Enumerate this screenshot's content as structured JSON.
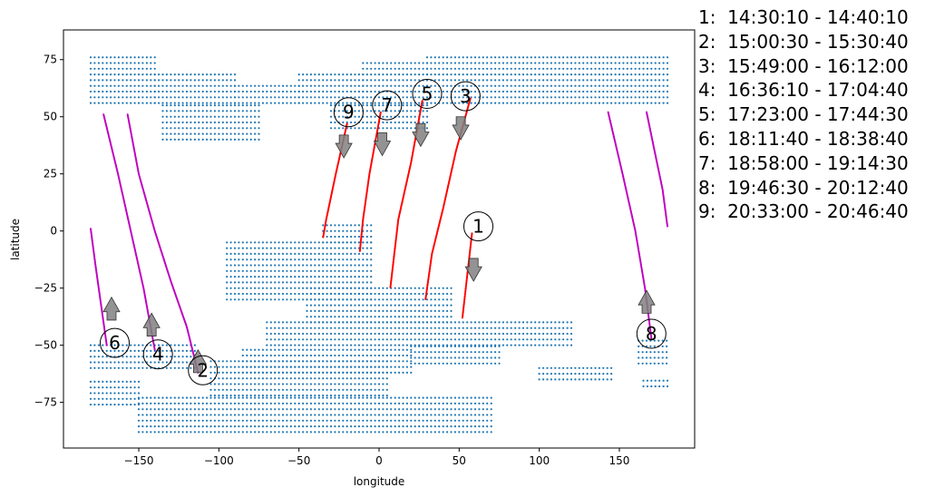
{
  "chart_data": {
    "type": "scatter",
    "xlabel": "longitude",
    "ylabel": "latitude",
    "xlim": [
      -197,
      197
    ],
    "ylim": [
      -95,
      88
    ],
    "xticks": [
      -150,
      -100,
      -50,
      0,
      50,
      100,
      150
    ],
    "yticks": [
      -75,
      -50,
      -25,
      0,
      25,
      50,
      75
    ],
    "colors": {
      "coverage": "#1f77b4",
      "ascending": "#bf00bf",
      "descending": "#ff0000",
      "arrow": "#808080"
    },
    "coverage": {
      "step": 2.5,
      "regions": [
        {
          "lat": [
            56,
            77
          ],
          "lon_min": -180,
          "lon_max": -140
        },
        {
          "lat": [
            56,
            70
          ],
          "lon_min": -140,
          "lon_max": -90
        },
        {
          "lat": [
            56,
            65
          ],
          "lon_min": -90,
          "lon_max": -50
        },
        {
          "lat": [
            40,
            56
          ],
          "lon_min": -135,
          "lon_max": -75
        },
        {
          "lat": [
            56,
            70
          ],
          "lon_min": -50,
          "lon_max": -10
        },
        {
          "lat": [
            56,
            75
          ],
          "lon_min": -10,
          "lon_max": 30
        },
        {
          "lat": [
            56,
            77
          ],
          "lon_min": 30,
          "lon_max": 180
        },
        {
          "lat": [
            45,
            56
          ],
          "lon_min": -30,
          "lon_max": 30
        },
        {
          "lat": [
            -5,
            3
          ],
          "lon_min": -35,
          "lon_max": -5
        },
        {
          "lat": [
            -30,
            -5
          ],
          "lon_min": -95,
          "lon_max": -5
        },
        {
          "lat": [
            -40,
            -25
          ],
          "lon_min": -45,
          "lon_max": 45
        },
        {
          "lat": [
            -50,
            -40
          ],
          "lon_min": -70,
          "lon_max": 120
        },
        {
          "lat": [
            -62,
            -50
          ],
          "lon_min": -85,
          "lon_max": 20
        },
        {
          "lat": [
            -58,
            -50
          ],
          "lon_min": 20,
          "lon_max": 75
        },
        {
          "lat": [
            -72,
            -55
          ],
          "lon_min": -105,
          "lon_max": 5
        },
        {
          "lat": [
            -88,
            -72
          ],
          "lon_min": -150,
          "lon_max": 70
        },
        {
          "lat": [
            -76,
            -64
          ],
          "lon_min": -180,
          "lon_max": -150
        },
        {
          "lat": [
            -60,
            -48
          ],
          "lon_min": -180,
          "lon_max": -115
        },
        {
          "lat": [
            -58,
            -48
          ],
          "lon_min": 162,
          "lon_max": 180
        },
        {
          "lat": [
            -68,
            -64
          ],
          "lon_min": 165,
          "lon_max": 180
        },
        {
          "lat": [
            -65,
            -58
          ],
          "lon_min": 100,
          "lon_max": 145
        }
      ]
    },
    "tracks": [
      {
        "id": "1",
        "kind": "descending",
        "points": [
          [
            58,
            -1
          ],
          [
            52,
            -38
          ]
        ],
        "arrow": [
          59,
          -12,
          -10
        ],
        "label": [
          62,
          2
        ]
      },
      {
        "id": "2",
        "kind": "ascending",
        "points": [
          [
            -157,
            51
          ],
          [
            -150,
            25
          ],
          [
            -140,
            0
          ],
          [
            -130,
            -22
          ],
          [
            -120,
            -42
          ],
          [
            -113,
            -62
          ]
        ],
        "arrow": [
          -113,
          -62,
          10
        ],
        "label": [
          -110,
          -61
        ]
      },
      {
        "id": "3",
        "kind": "descending",
        "points": [
          [
            57,
            58
          ],
          [
            48,
            35
          ],
          [
            40,
            10
          ],
          [
            33,
            -10
          ],
          [
            29,
            -30
          ]
        ],
        "arrow": [
          51,
          50,
          -10
        ],
        "label": [
          54,
          59
        ]
      },
      {
        "id": "4",
        "kind": "ascending",
        "points": [
          [
            -172,
            51
          ],
          [
            -163,
            25
          ],
          [
            -155,
            0
          ],
          [
            -147,
            -25
          ],
          [
            -140,
            -52
          ]
        ],
        "arrow": [
          -142,
          -46,
          10
        ],
        "label": [
          -138,
          -54
        ]
      },
      {
        "id": "5",
        "kind": "descending",
        "points": [
          [
            27,
            57
          ],
          [
            20,
            30
          ],
          [
            12,
            5
          ],
          [
            7,
            -25
          ]
        ],
        "arrow": [
          26,
          47,
          -10
        ],
        "label": [
          30,
          60
        ]
      },
      {
        "id": "6",
        "kind": "ascending",
        "points": [
          [
            -180,
            1
          ],
          [
            -177,
            -15
          ],
          [
            -173,
            -35
          ],
          [
            -170,
            -50
          ]
        ],
        "arrow": [
          -167,
          -39,
          10
        ],
        "label": [
          -165,
          -49
        ]
      },
      {
        "id": "7",
        "kind": "descending",
        "points": [
          [
            1,
            52
          ],
          [
            -6,
            25
          ],
          [
            -10,
            5
          ],
          [
            -12,
            -9
          ]
        ],
        "arrow": [
          2,
          43,
          -10
        ],
        "label": [
          5,
          55
        ]
      },
      {
        "id": "8",
        "kind": "ascending",
        "points": [
          [
            143,
            52
          ],
          [
            152,
            25
          ],
          [
            160,
            0
          ],
          [
            166,
            -25
          ],
          [
            170,
            -47
          ]
        ],
        "arrow": [
          167,
          -36,
          10
        ],
        "label": [
          170,
          -45
        ]
      },
      {
        "id": "8b",
        "kind": "ascending",
        "points": [
          [
            167,
            52
          ],
          [
            172,
            35
          ],
          [
            177,
            18
          ],
          [
            180,
            2
          ]
        ]
      },
      {
        "id": "9",
        "kind": "descending",
        "points": [
          [
            -20,
            47
          ],
          [
            -27,
            25
          ],
          [
            -33,
            5
          ],
          [
            -35,
            -3
          ]
        ],
        "arrow": [
          -22,
          42,
          -10
        ],
        "label": [
          -19,
          52
        ]
      }
    ],
    "legend_entries": [
      "1:  14:30:10 - 14:40:10",
      "2:  15:00:30 - 15:30:40",
      "3:  15:49:00 - 16:12:00",
      "4:  16:36:10 - 17:04:40",
      "5:  17:23:00 - 17:44:30",
      "6:  18:11:40 - 18:38:40",
      "7:  18:58:00 - 19:14:30",
      "8:  19:46:30 - 20:12:40",
      "9:  20:33:00 - 20:46:40"
    ]
  }
}
